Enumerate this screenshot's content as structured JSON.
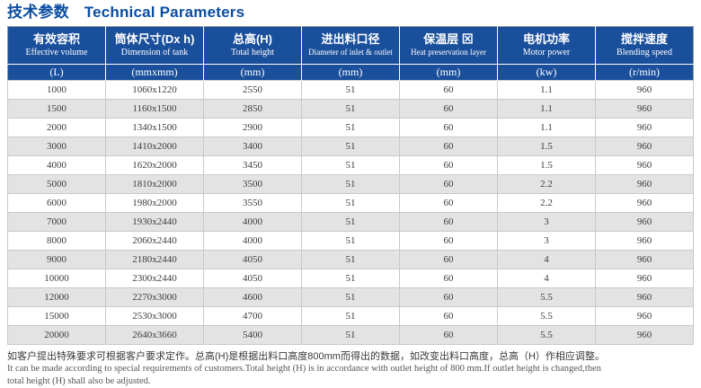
{
  "title": {
    "zh": "技术参数",
    "en": "Technical Parameters"
  },
  "colors": {
    "title_text": "#0b4da1",
    "header_bg": "#1a4f9b",
    "header_text": "#ffffff",
    "row_alt_bg": "#e3e3e3",
    "grid_line": "#c9c9c9",
    "outer_border": "#999999"
  },
  "table": {
    "columns": [
      {
        "zh": "有效容积",
        "en": "Effective volume",
        "unit": "(L)"
      },
      {
        "zh": "筒体尺寸(Dx h)",
        "en": "Dimension of tank",
        "unit": "(mmxmm)"
      },
      {
        "zh": "总高(H)",
        "en": "Total height",
        "unit": "(mm)"
      },
      {
        "zh": "进出料口径",
        "en": "Diameter of inlet & outlet",
        "unit": "(mm)"
      },
      {
        "zh": "保温层 ⊠",
        "en": "Heat preservation layer",
        "unit": "(mm)"
      },
      {
        "zh": "电机功率",
        "en": "Motor power",
        "unit": "(kw)"
      },
      {
        "zh": "搅拌速度",
        "en": "Blending speed",
        "unit": "(r/min)"
      }
    ],
    "rows": [
      [
        "1000",
        "1060x1220",
        "2550",
        "51",
        "60",
        "1.1",
        "960"
      ],
      [
        "1500",
        "1160x1500",
        "2850",
        "51",
        "60",
        "1.1",
        "960"
      ],
      [
        "2000",
        "1340x1500",
        "2900",
        "51",
        "60",
        "1.1",
        "960"
      ],
      [
        "3000",
        "1410x2000",
        "3400",
        "51",
        "60",
        "1.5",
        "960"
      ],
      [
        "4000",
        "1620x2000",
        "3450",
        "51",
        "60",
        "1.5",
        "960"
      ],
      [
        "5000",
        "1810x2000",
        "3500",
        "51",
        "60",
        "2.2",
        "960"
      ],
      [
        "6000",
        "1980x2000",
        "3550",
        "51",
        "60",
        "2.2",
        "960"
      ],
      [
        "7000",
        "1930x2440",
        "4000",
        "51",
        "60",
        "3",
        "960"
      ],
      [
        "8000",
        "2060x2440",
        "4000",
        "51",
        "60",
        "3",
        "960"
      ],
      [
        "9000",
        "2180x2440",
        "4050",
        "51",
        "60",
        "4",
        "960"
      ],
      [
        "10000",
        "2300x2440",
        "4050",
        "51",
        "60",
        "4",
        "960"
      ],
      [
        "12000",
        "2270x3000",
        "4600",
        "51",
        "60",
        "5.5",
        "960"
      ],
      [
        "15000",
        "2530x3000",
        "4700",
        "51",
        "60",
        "5.5",
        "960"
      ],
      [
        "20000",
        "2640x3660",
        "5400",
        "51",
        "60",
        "5.5",
        "960"
      ]
    ]
  },
  "notes": {
    "zh": "如客户提出特殊要求可根据客户要求定作。总高(H)是根据出料口高度800mm而得出的数据，如改变出料口高度，总高（H）作相应调整。",
    "en_line1": "It can be made according to special requirements of customers.Total height (H) is in accordance with outlet height of 800 mm.If outlet height is changed,then",
    "en_line2": "total height (H) shall also be adjusted."
  }
}
